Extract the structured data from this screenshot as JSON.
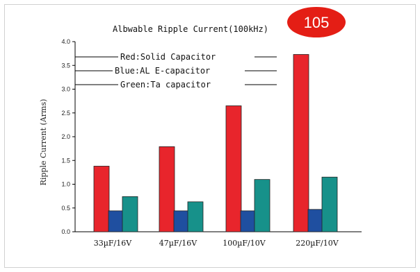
{
  "chart_data": {
    "type": "bar",
    "title": "Albwable Ripple Current(100kHz)",
    "ylabel": "Ripple Current (Arms)",
    "xlabel": "",
    "ylim": [
      0,
      4.0
    ],
    "yticks": [
      "0.0",
      "0.5",
      "1.0",
      "1.5",
      "2.0",
      "2.5",
      "3.0",
      "3.5",
      "4.0"
    ],
    "categories": [
      "33µF/16V",
      "47µF/16V",
      "100µF/10V",
      "220µF/10V"
    ],
    "series": [
      {
        "name": "Red:Solid Capacitor",
        "color": "#e8252c",
        "values": [
          1.38,
          1.79,
          2.65,
          3.73
        ]
      },
      {
        "name": "Blue:AL E-capacitor",
        "color": "#1f4fa0",
        "values": [
          0.44,
          0.44,
          0.44,
          0.47
        ]
      },
      {
        "name": "Green:Ta capacitor",
        "color": "#17918a",
        "values": [
          0.74,
          0.63,
          1.1,
          1.15
        ]
      }
    ],
    "grid": false,
    "legend_position": "top-left"
  },
  "badge": {
    "text": "105",
    "color": "#e41e15"
  }
}
